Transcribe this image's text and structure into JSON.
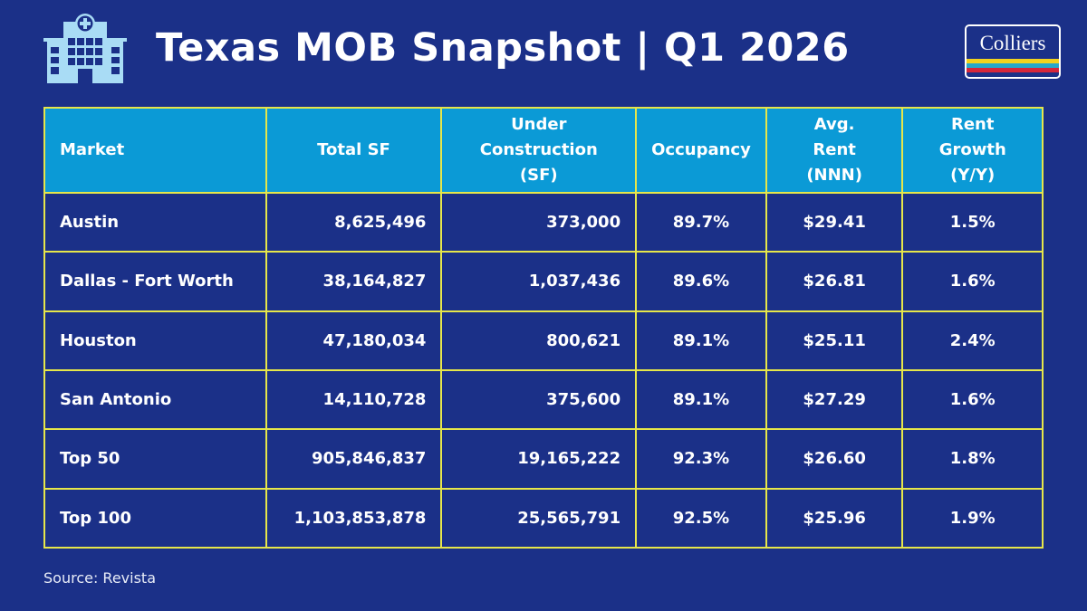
{
  "header": {
    "title": "Texas MOB Snapshot | Q1 2026",
    "icon": "hospital-icon",
    "logo_text": "Colliers",
    "logo_stripes": [
      "#f3d21d",
      "#27a7c9",
      "#d6263a"
    ]
  },
  "colors": {
    "background": "#1b3088",
    "header_fill": "#0b9ad6",
    "grid": "#e6e64a"
  },
  "table": {
    "columns": [
      "Market",
      "Total SF",
      "Under Construction (SF)",
      "Occupancy",
      "Avg. Rent (NNN)",
      "Rent Growth (Y/Y)"
    ],
    "rows": [
      [
        "Austin",
        "8,625,496",
        "373,000",
        "89.7%",
        "$29.41",
        "1.5%"
      ],
      [
        "Dallas - Fort Worth",
        "38,164,827",
        "1,037,436",
        "89.6%",
        "$26.81",
        "1.6%"
      ],
      [
        "Houston",
        "47,180,034",
        "800,621",
        "89.1%",
        "$25.11",
        "2.4%"
      ],
      [
        "San Antonio",
        "14,110,728",
        "375,600",
        "89.1%",
        "$27.29",
        "1.6%"
      ],
      [
        "Top 50",
        "905,846,837",
        "19,165,222",
        "92.3%",
        "$26.60",
        "1.8%"
      ],
      [
        "Top 100",
        "1,103,853,878",
        "25,565,791",
        "92.5%",
        "$25.96",
        "1.9%"
      ]
    ]
  },
  "footer": {
    "source": "Source: Revista"
  }
}
